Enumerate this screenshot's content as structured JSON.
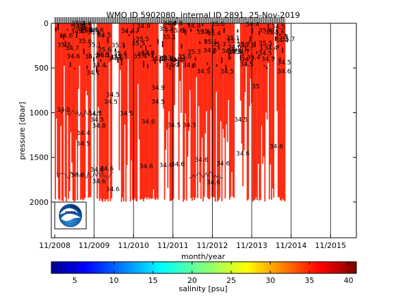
{
  "chart_data": {
    "type": "scatter",
    "title": "WMO ID 5902080, internal ID 2891, 25-Nov-2019",
    "xlabel": "month/year",
    "ylabel": "pressure [dbar]",
    "x_ticks": [
      "11/2008",
      "11/2009",
      "11/2010",
      "11/2011",
      "11/2012",
      "11/2013",
      "11/2014",
      "11/2015"
    ],
    "y_ticks": [
      0,
      500,
      1000,
      1500,
      2000
    ],
    "ylim": [
      2400,
      0
    ],
    "y_inverted": true,
    "colorbar": {
      "label": "salinity [psu]",
      "ticks": [
        5,
        10,
        15,
        20,
        25,
        30,
        35,
        40
      ],
      "range": [
        2,
        41
      ]
    },
    "profiles_start": "11/2008",
    "profiles_end": "08/2014",
    "profile_max_pressure_dbar": 2000,
    "dominant_color": "#ff2a12",
    "logo": "noaa-logo",
    "annotations": [
      {
        "text": "35.6",
        "x": 0.9,
        "y": 100
      },
      {
        "text": "35.5",
        "x": 2.05,
        "y": 200
      },
      {
        "text": "35.5",
        "x": 1.95,
        "y": 250
      },
      {
        "text": "34.4",
        "x": 0.95,
        "y": 490
      },
      {
        "text": "34.1",
        "x": 0.8,
        "y": 575
      },
      {
        "text": "34.5",
        "x": 1.3,
        "y": 820
      },
      {
        "text": "34.5",
        "x": 1.25,
        "y": 900
      },
      {
        "text": "34.9",
        "x": 2.45,
        "y": 745
      },
      {
        "text": "34.5",
        "x": 2.45,
        "y": 900
      },
      {
        "text": "34.5",
        "x": 0.05,
        "y": 990
      },
      {
        "text": "34.5",
        "x": 0.85,
        "y": 1030
      },
      {
        "text": "34.5",
        "x": 0.9,
        "y": 1100
      },
      {
        "text": "34.8",
        "x": 0.95,
        "y": 1170
      },
      {
        "text": "34.4",
        "x": 0.55,
        "y": 1250
      },
      {
        "text": "34.5",
        "x": 0.55,
        "y": 1370
      },
      {
        "text": "34.5",
        "x": 1.65,
        "y": 1030
      },
      {
        "text": "34.6",
        "x": 2.2,
        "y": 1125
      },
      {
        "text": "34.5",
        "x": 2.85,
        "y": 1160
      },
      {
        "text": "34.5",
        "x": 3.25,
        "y": 1160
      },
      {
        "text": "34.5",
        "x": 4.55,
        "y": 1100
      },
      {
        "text": "34.6",
        "x": 0.4,
        "y": 1720
      },
      {
        "text": "34.6",
        "x": 0.9,
        "y": 1660
      },
      {
        "text": "34.6",
        "x": 1.15,
        "y": 1650
      },
      {
        "text": "34.6",
        "x": 0.95,
        "y": 1790
      },
      {
        "text": "34.6",
        "x": 1.3,
        "y": 1880
      },
      {
        "text": "34.6",
        "x": 2.15,
        "y": 1620
      },
      {
        "text": "34.6",
        "x": 2.65,
        "y": 1610
      },
      {
        "text": "34.6",
        "x": 2.95,
        "y": 1600
      },
      {
        "text": "34.6",
        "x": 3.55,
        "y": 1550
      },
      {
        "text": "34.6",
        "x": 4.1,
        "y": 1590
      },
      {
        "text": "34.6",
        "x": 3.85,
        "y": 1800
      },
      {
        "text": "34.6",
        "x": 4.6,
        "y": 1480
      },
      {
        "text": "34.6",
        "x": 5.45,
        "y": 1400
      },
      {
        "text": "34.6",
        "x": 3.25,
        "y": 490
      },
      {
        "text": "34.5",
        "x": 3.6,
        "y": 560
      },
      {
        "text": "34.5",
        "x": 4.2,
        "y": 560
      },
      {
        "text": "34.5",
        "x": 4.7,
        "y": 480
      },
      {
        "text": "34.5",
        "x": 5.65,
        "y": 460
      },
      {
        "text": "34.6",
        "x": 5.65,
        "y": 560
      },
      {
        "text": "35",
        "x": 5.0,
        "y": 730
      },
      {
        "text": "35.7",
        "x": 5.75,
        "y": 200
      },
      {
        "text": "34.5",
        "x": 5.5,
        "y": 60
      },
      {
        "text": "34.9",
        "x": 2.8,
        "y": 490
      }
    ]
  }
}
